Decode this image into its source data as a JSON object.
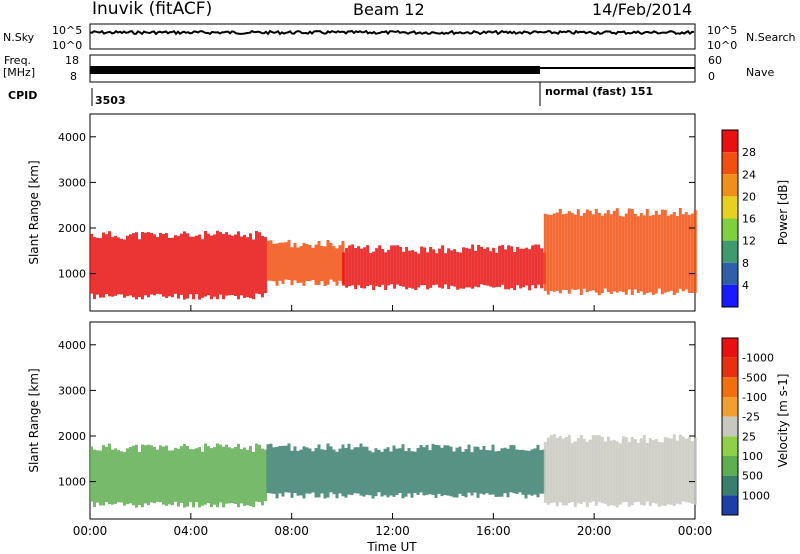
{
  "header": {
    "station": "Inuvik (fitACF)",
    "beam": "Beam 12",
    "date": "14/Feb/2014"
  },
  "top_panels": {
    "nsky_label": "N.Sky",
    "nsky_ticks": [
      "10^5",
      "10^0"
    ],
    "nsearch_label": "N.Search",
    "nsearch_ticks": [
      "10^5",
      "10^0"
    ],
    "freq_label": "Freq.",
    "freq_unit": "[MHz]",
    "freq_ticks": [
      "18",
      "8"
    ],
    "nave_label": "Nave",
    "nave_ticks": [
      "60",
      "0"
    ],
    "cpid_label": "CPID",
    "cpid_value": "3503",
    "mode_text": "normal (fast) 151"
  },
  "chart_data": [
    {
      "type": "heatmap",
      "panel": "power",
      "ylabel": "Slant Range [km]",
      "ylim": [
        180,
        4500
      ],
      "y_ticks": [
        "1000",
        "2000",
        "3000",
        "4000"
      ],
      "x_range_hours": [
        0,
        24
      ],
      "colorbar_label": "Power [dB]",
      "colorbar_ticks": [
        "4",
        "8",
        "12",
        "16",
        "20",
        "24",
        "28"
      ],
      "colorbar_colors": [
        "#1a1aff",
        "#2e5fa8",
        "#3f9a70",
        "#7fcf3f",
        "#e8d020",
        "#f0901a",
        "#f25010",
        "#e81010"
      ],
      "bands": [
        {
          "from_h": 0.0,
          "to_h": 7.0,
          "range_km": [
            500,
            1800
          ],
          "color": "#e81010"
        },
        {
          "from_h": 7.0,
          "to_h": 10.0,
          "range_km": [
            800,
            1600
          ],
          "color": "#f25010"
        },
        {
          "from_h": 10.0,
          "to_h": 18.0,
          "range_km": [
            700,
            1500
          ],
          "color": "#e81010"
        },
        {
          "from_h": 18.0,
          "to_h": 24.0,
          "range_km": [
            600,
            2300
          ],
          "color": "#f25010"
        }
      ]
    },
    {
      "type": "heatmap",
      "panel": "velocity",
      "ylabel": "Slant Range [km]",
      "ylim": [
        180,
        4500
      ],
      "y_ticks": [
        "1000",
        "2000",
        "3000",
        "4000"
      ],
      "x_range_hours": [
        0,
        24
      ],
      "colorbar_label": "Velocity [m s-1]",
      "colorbar_ticks": [
        "1000",
        "500",
        "100",
        "25",
        "-25",
        "-100",
        "-500",
        "-1000"
      ],
      "colorbar_colors": [
        "#1e3ea8",
        "#3a7f6e",
        "#5fae52",
        "#8fd04a",
        "#c8c8c0",
        "#f0a030",
        "#f07010",
        "#e83010",
        "#e81010"
      ],
      "bands": [
        {
          "from_h": 0.0,
          "to_h": 7.0,
          "range_km": [
            500,
            1700
          ],
          "color": "#5fae52"
        },
        {
          "from_h": 7.0,
          "to_h": 18.0,
          "range_km": [
            700,
            1700
          ],
          "color": "#3a7f6e"
        },
        {
          "from_h": 18.0,
          "to_h": 24.0,
          "range_km": [
            500,
            1900
          ],
          "color": "#c8c8c0"
        }
      ]
    }
  ],
  "x_axis": {
    "ticks": [
      "00:00",
      "04:00",
      "08:00",
      "12:00",
      "16:00",
      "20:00",
      "00:00"
    ],
    "label": "Time UT"
  }
}
